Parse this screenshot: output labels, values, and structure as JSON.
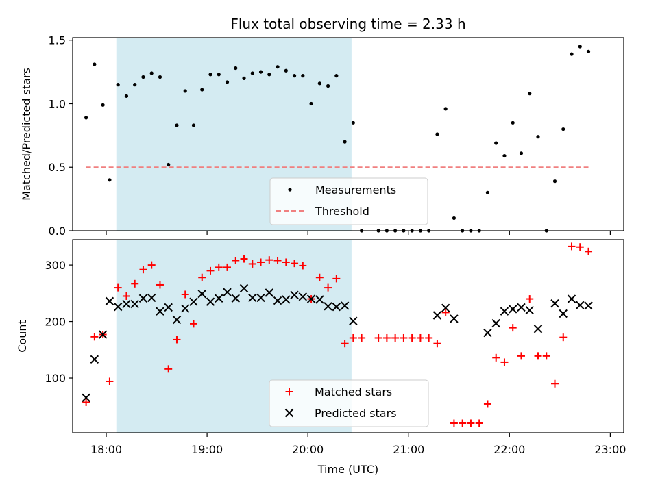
{
  "chart_data": {
    "title": "Flux total observing time = 2.33 h",
    "xlabel": "Time (UTC)",
    "x_ticks": [
      "18:00",
      "19:00",
      "20:00",
      "21:00",
      "22:00",
      "23:00"
    ],
    "shaded_interval": [
      "18:06",
      "20:26"
    ],
    "colors": {
      "measurements": "#000000",
      "threshold": "#f08080",
      "matched": "#ff0000",
      "predicted": "#000000",
      "shade": "#add8e6"
    },
    "panels": [
      {
        "type": "scatter",
        "ylabel": "Matched/Predicted stars",
        "ylim": [
          0,
          1.52
        ],
        "y_ticks": [
          "0.0",
          "0.5",
          "1.0",
          "1.5"
        ],
        "legend_loc": "lower-center",
        "series": [
          {
            "name": "Measurements",
            "marker": "dot",
            "points": [
              [
                "17:48",
                0.89
              ],
              [
                "17:53",
                1.31
              ],
              [
                "17:58",
                0.99
              ],
              [
                "18:02",
                0.4
              ],
              [
                "18:07",
                1.15
              ],
              [
                "18:12",
                1.06
              ],
              [
                "18:17",
                1.15
              ],
              [
                "18:22",
                1.21
              ],
              [
                "18:27",
                1.24
              ],
              [
                "18:32",
                1.21
              ],
              [
                "18:37",
                0.52
              ],
              [
                "18:42",
                0.83
              ],
              [
                "18:47",
                1.1
              ],
              [
                "18:52",
                0.83
              ],
              [
                "18:57",
                1.11
              ],
              [
                "19:02",
                1.23
              ],
              [
                "19:07",
                1.23
              ],
              [
                "19:12",
                1.17
              ],
              [
                "19:17",
                1.28
              ],
              [
                "19:22",
                1.2
              ],
              [
                "19:27",
                1.24
              ],
              [
                "19:32",
                1.25
              ],
              [
                "19:37",
                1.23
              ],
              [
                "19:42",
                1.29
              ],
              [
                "19:47",
                1.26
              ],
              [
                "19:52",
                1.22
              ],
              [
                "19:57",
                1.22
              ],
              [
                "20:02",
                1.0
              ],
              [
                "20:07",
                1.16
              ],
              [
                "20:12",
                1.14
              ],
              [
                "20:17",
                1.22
              ],
              [
                "20:22",
                0.7
              ],
              [
                "20:27",
                0.85
              ],
              [
                "20:32",
                0.0
              ],
              [
                "20:42",
                0.0
              ],
              [
                "20:47",
                0.0
              ],
              [
                "20:52",
                0.0
              ],
              [
                "20:57",
                0.0
              ],
              [
                "21:02",
                0.0
              ],
              [
                "21:07",
                0.0
              ],
              [
                "21:12",
                0.0
              ],
              [
                "21:17",
                0.76
              ],
              [
                "21:22",
                0.96
              ],
              [
                "21:27",
                0.1
              ],
              [
                "21:32",
                0.0
              ],
              [
                "21:37",
                0.0
              ],
              [
                "21:42",
                0.0
              ],
              [
                "21:47",
                0.3
              ],
              [
                "21:52",
                0.69
              ],
              [
                "21:57",
                0.59
              ],
              [
                "22:02",
                0.85
              ],
              [
                "22:07",
                0.61
              ],
              [
                "22:12",
                1.08
              ],
              [
                "22:17",
                0.74
              ],
              [
                "22:22",
                0.0
              ],
              [
                "22:27",
                0.39
              ],
              [
                "22:32",
                0.8
              ],
              [
                "22:37",
                1.39
              ],
              [
                "22:42",
                1.45
              ],
              [
                "22:47",
                1.41
              ]
            ]
          },
          {
            "name": "Threshold",
            "style": "dashed-line",
            "points": [
              [
                "17:48",
                0.5
              ],
              [
                "22:47",
                0.5
              ]
            ]
          }
        ]
      },
      {
        "type": "scatter",
        "ylabel": "Count",
        "ylim": [
          3,
          345
        ],
        "y_ticks": [
          "100",
          "200",
          "300"
        ],
        "legend_loc": "lower-center",
        "series": [
          {
            "name": "Matched stars",
            "marker": "plus",
            "points": [
              [
                "17:48",
                57
              ],
              [
                "17:53",
                173
              ],
              [
                "17:58",
                177
              ],
              [
                "18:02",
                94
              ],
              [
                "18:07",
                260
              ],
              [
                "18:12",
                245
              ],
              [
                "18:17",
                267
              ],
              [
                "18:22",
                292
              ],
              [
                "18:27",
                300
              ],
              [
                "18:32",
                265
              ],
              [
                "18:37",
                116
              ],
              [
                "18:42",
                168
              ],
              [
                "18:47",
                248
              ],
              [
                "18:52",
                196
              ],
              [
                "18:57",
                278
              ],
              [
                "19:02",
                290
              ],
              [
                "19:07",
                296
              ],
              [
                "19:12",
                296
              ],
              [
                "19:17",
                308
              ],
              [
                "19:22",
                311
              ],
              [
                "19:27",
                302
              ],
              [
                "19:32",
                305
              ],
              [
                "19:37",
                309
              ],
              [
                "19:42",
                308
              ],
              [
                "19:47",
                305
              ],
              [
                "19:52",
                303
              ],
              [
                "19:57",
                299
              ],
              [
                "20:02",
                240
              ],
              [
                "20:07",
                278
              ],
              [
                "20:12",
                260
              ],
              [
                "20:17",
                276
              ],
              [
                "20:22",
                161
              ],
              [
                "20:27",
                171
              ],
              [
                "20:32",
                171
              ],
              [
                "20:42",
                171
              ],
              [
                "20:47",
                171
              ],
              [
                "20:52",
                171
              ],
              [
                "20:57",
                171
              ],
              [
                "21:02",
                171
              ],
              [
                "21:07",
                171
              ],
              [
                "21:12",
                171
              ],
              [
                "21:17",
                161
              ],
              [
                "21:22",
                216
              ],
              [
                "21:27",
                20
              ],
              [
                "21:32",
                20
              ],
              [
                "21:37",
                20
              ],
              [
                "21:42",
                20
              ],
              [
                "21:47",
                54
              ],
              [
                "21:52",
                136
              ],
              [
                "21:57",
                128
              ],
              [
                "22:02",
                189
              ],
              [
                "22:07",
                139
              ],
              [
                "22:12",
                240
              ],
              [
                "22:17",
                139
              ],
              [
                "22:22",
                139
              ],
              [
                "22:27",
                90
              ],
              [
                "22:32",
                172
              ],
              [
                "22:37",
                333
              ],
              [
                "22:42",
                332
              ],
              [
                "22:47",
                324
              ]
            ]
          },
          {
            "name": "Predicted stars",
            "marker": "x",
            "points": [
              [
                "17:48",
                65
              ],
              [
                "17:53",
                133
              ],
              [
                "17:58",
                177
              ],
              [
                "18:02",
                236
              ],
              [
                "18:07",
                226
              ],
              [
                "18:12",
                231
              ],
              [
                "18:17",
                231
              ],
              [
                "18:22",
                241
              ],
              [
                "18:27",
                242
              ],
              [
                "18:32",
                218
              ],
              [
                "18:37",
                225
              ],
              [
                "18:42",
                203
              ],
              [
                "18:47",
                223
              ],
              [
                "18:52",
                235
              ],
              [
                "18:57",
                249
              ],
              [
                "19:02",
                235
              ],
              [
                "19:07",
                241
              ],
              [
                "19:12",
                252
              ],
              [
                "19:17",
                241
              ],
              [
                "19:22",
                259
              ],
              [
                "19:27",
                242
              ],
              [
                "19:32",
                242
              ],
              [
                "19:37",
                251
              ],
              [
                "19:42",
                237
              ],
              [
                "19:47",
                239
              ],
              [
                "19:52",
                247
              ],
              [
                "19:57",
                244
              ],
              [
                "20:02",
                240
              ],
              [
                "20:07",
                239
              ],
              [
                "20:12",
                227
              ],
              [
                "20:17",
                226
              ],
              [
                "20:22",
                228
              ],
              [
                "20:27",
                201
              ],
              [
                "21:17",
                211
              ],
              [
                "21:22",
                224
              ],
              [
                "21:27",
                205
              ],
              [
                "21:47",
                180
              ],
              [
                "21:52",
                197
              ],
              [
                "21:57",
                218
              ],
              [
                "22:02",
                222
              ],
              [
                "22:07",
                225
              ],
              [
                "22:12",
                220
              ],
              [
                "22:17",
                187
              ],
              [
                "22:27",
                232
              ],
              [
                "22:32",
                214
              ],
              [
                "22:37",
                240
              ],
              [
                "22:42",
                229
              ],
              [
                "22:47",
                228
              ]
            ]
          }
        ]
      }
    ]
  }
}
